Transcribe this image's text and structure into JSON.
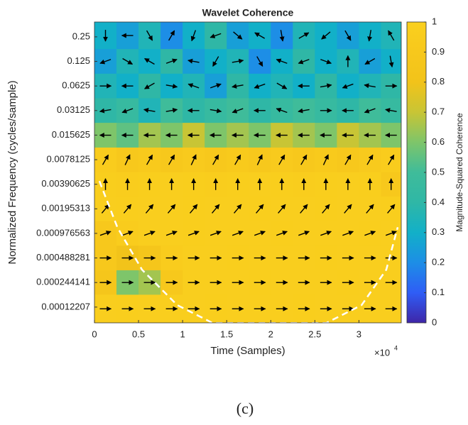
{
  "chart_data": {
    "type": "heatmap",
    "title": "Wavelet Coherence",
    "xlabel": "Time (Samples)",
    "ylabel": "Normalized Frequency  (cycles/sample)",
    "x_scale_base": "×10",
    "x_scale_exponent": "4",
    "colorbar_label": "Magnitude-Squared Coherence",
    "caption": "(c)",
    "xlim": [
      0,
      3.48
    ],
    "xticks": [
      0,
      0.5,
      1,
      1.5,
      2,
      2.5,
      3
    ],
    "ylim": [
      7.83e-05,
      0.38
    ],
    "yscale": "log",
    "yticks": [
      0.25,
      0.125,
      0.0625,
      0.03125,
      0.015625,
      0.0078125,
      0.00390625,
      0.00195313,
      0.000976563,
      0.000488281,
      0.000244141,
      0.00012207
    ],
    "clim": [
      0,
      1
    ],
    "cticks": [
      0,
      0.1,
      0.2,
      0.3,
      0.4,
      0.5,
      0.6,
      0.7,
      0.8,
      0.9,
      1
    ],
    "colormap": [
      "#3e26a8",
      "#2f5df6",
      "#1d8ee6",
      "#12b0c8",
      "#2fb7a6",
      "#3fbc9a",
      "#7ec56a",
      "#c8c535",
      "#f2c31a",
      "#f7c81c",
      "#fad01e"
    ],
    "x_bins": [
      0,
      0.25,
      0.5,
      0.75,
      1,
      1.25,
      1.5,
      1.75,
      2,
      2.25,
      2.5,
      2.75,
      3,
      3.25,
      3.48
    ],
    "y_bins": [
      0.38,
      0.177,
      0.0884,
      0.0442,
      0.0221,
      0.011,
      0.0055,
      0.00276,
      0.00138,
      0.00069,
      0.000345,
      0.000173,
      7.83e-05
    ],
    "z": [
      [
        0.3,
        0.25,
        0.35,
        0.2,
        0.3,
        0.4,
        0.25,
        0.3,
        0.2,
        0.35,
        0.3,
        0.25,
        0.3,
        0.35
      ],
      [
        0.25,
        0.35,
        0.3,
        0.4,
        0.25,
        0.3,
        0.35,
        0.2,
        0.3,
        0.4,
        0.3,
        0.35,
        0.25,
        0.3
      ],
      [
        0.35,
        0.3,
        0.4,
        0.3,
        0.35,
        0.25,
        0.4,
        0.3,
        0.35,
        0.3,
        0.4,
        0.3,
        0.35,
        0.4
      ],
      [
        0.4,
        0.45,
        0.35,
        0.5,
        0.4,
        0.45,
        0.5,
        0.4,
        0.45,
        0.5,
        0.45,
        0.4,
        0.5,
        0.45
      ],
      [
        0.6,
        0.55,
        0.65,
        0.6,
        0.7,
        0.6,
        0.65,
        0.6,
        0.7,
        0.65,
        0.6,
        0.7,
        0.65,
        0.6
      ],
      [
        0.95,
        0.9,
        0.92,
        0.9,
        0.93,
        0.9,
        0.92,
        0.9,
        0.93,
        0.9,
        0.92,
        0.9,
        0.93,
        0.95
      ],
      [
        0.97,
        0.96,
        0.97,
        0.98,
        0.97,
        0.96,
        0.97,
        0.98,
        0.97,
        0.96,
        0.97,
        0.98,
        0.97,
        0.9
      ],
      [
        0.98,
        0.97,
        0.98,
        0.98,
        0.97,
        0.98,
        0.98,
        0.97,
        0.98,
        0.98,
        0.97,
        0.98,
        0.98,
        0.97
      ],
      [
        0.9,
        0.95,
        0.98,
        0.98,
        0.97,
        0.98,
        0.98,
        0.98,
        0.97,
        0.98,
        0.98,
        0.98,
        0.97,
        0.98
      ],
      [
        0.9,
        0.8,
        0.85,
        0.95,
        0.98,
        0.98,
        0.97,
        0.98,
        0.98,
        0.98,
        0.97,
        0.98,
        0.98,
        0.98
      ],
      [
        0.85,
        0.6,
        0.65,
        0.9,
        0.98,
        0.98,
        0.98,
        0.97,
        0.98,
        0.98,
        0.98,
        0.97,
        0.98,
        0.98
      ],
      [
        0.98,
        0.97,
        0.98,
        0.98,
        0.98,
        0.97,
        0.98,
        0.98,
        0.98,
        0.97,
        0.98,
        0.98,
        0.98,
        0.98
      ]
    ],
    "phase_deg": [
      [
        270,
        180,
        300,
        60,
        250,
        200,
        320,
        150,
        280,
        30,
        220,
        300,
        260,
        120
      ],
      [
        200,
        330,
        150,
        20,
        170,
        240,
        10,
        300,
        160,
        200,
        340,
        90,
        210,
        280
      ],
      [
        0,
        180,
        210,
        350,
        160,
        20,
        190,
        200,
        330,
        180,
        10,
        200,
        170,
        0
      ],
      [
        190,
        200,
        170,
        10,
        180,
        350,
        200,
        180,
        160,
        190,
        0,
        180,
        200,
        170
      ],
      [
        180,
        180,
        180,
        180,
        180,
        180,
        180,
        180,
        180,
        180,
        180,
        180,
        180,
        180
      ],
      [
        60,
        65,
        60,
        60,
        65,
        60,
        60,
        65,
        60,
        60,
        65,
        60,
        60,
        60
      ],
      [
        90,
        90,
        90,
        90,
        90,
        90,
        90,
        90,
        90,
        90,
        90,
        90,
        90,
        90
      ],
      [
        50,
        50,
        50,
        50,
        50,
        50,
        50,
        50,
        50,
        50,
        50,
        50,
        50,
        50
      ],
      [
        20,
        20,
        20,
        20,
        20,
        20,
        20,
        20,
        20,
        20,
        20,
        20,
        20,
        20
      ],
      [
        0,
        0,
        0,
        0,
        0,
        0,
        0,
        0,
        0,
        0,
        0,
        0,
        0,
        0
      ],
      [
        0,
        0,
        0,
        0,
        0,
        0,
        0,
        0,
        0,
        0,
        0,
        0,
        0,
        0
      ],
      [
        0,
        0,
        0,
        0,
        0,
        0,
        0,
        0,
        0,
        0,
        0,
        0,
        0,
        0
      ]
    ],
    "coi": {
      "color": "#ffffff",
      "x": [
        0.056,
        0.26,
        0.54,
        0.94,
        1.34,
        2.63,
        3.03,
        3.31,
        3.44
      ],
      "y": [
        0.00427,
        0.00116,
        0.00035,
        0.000129,
        7.8e-05,
        7.8e-05,
        0.000129,
        0.00035,
        0.00116
      ]
    }
  }
}
